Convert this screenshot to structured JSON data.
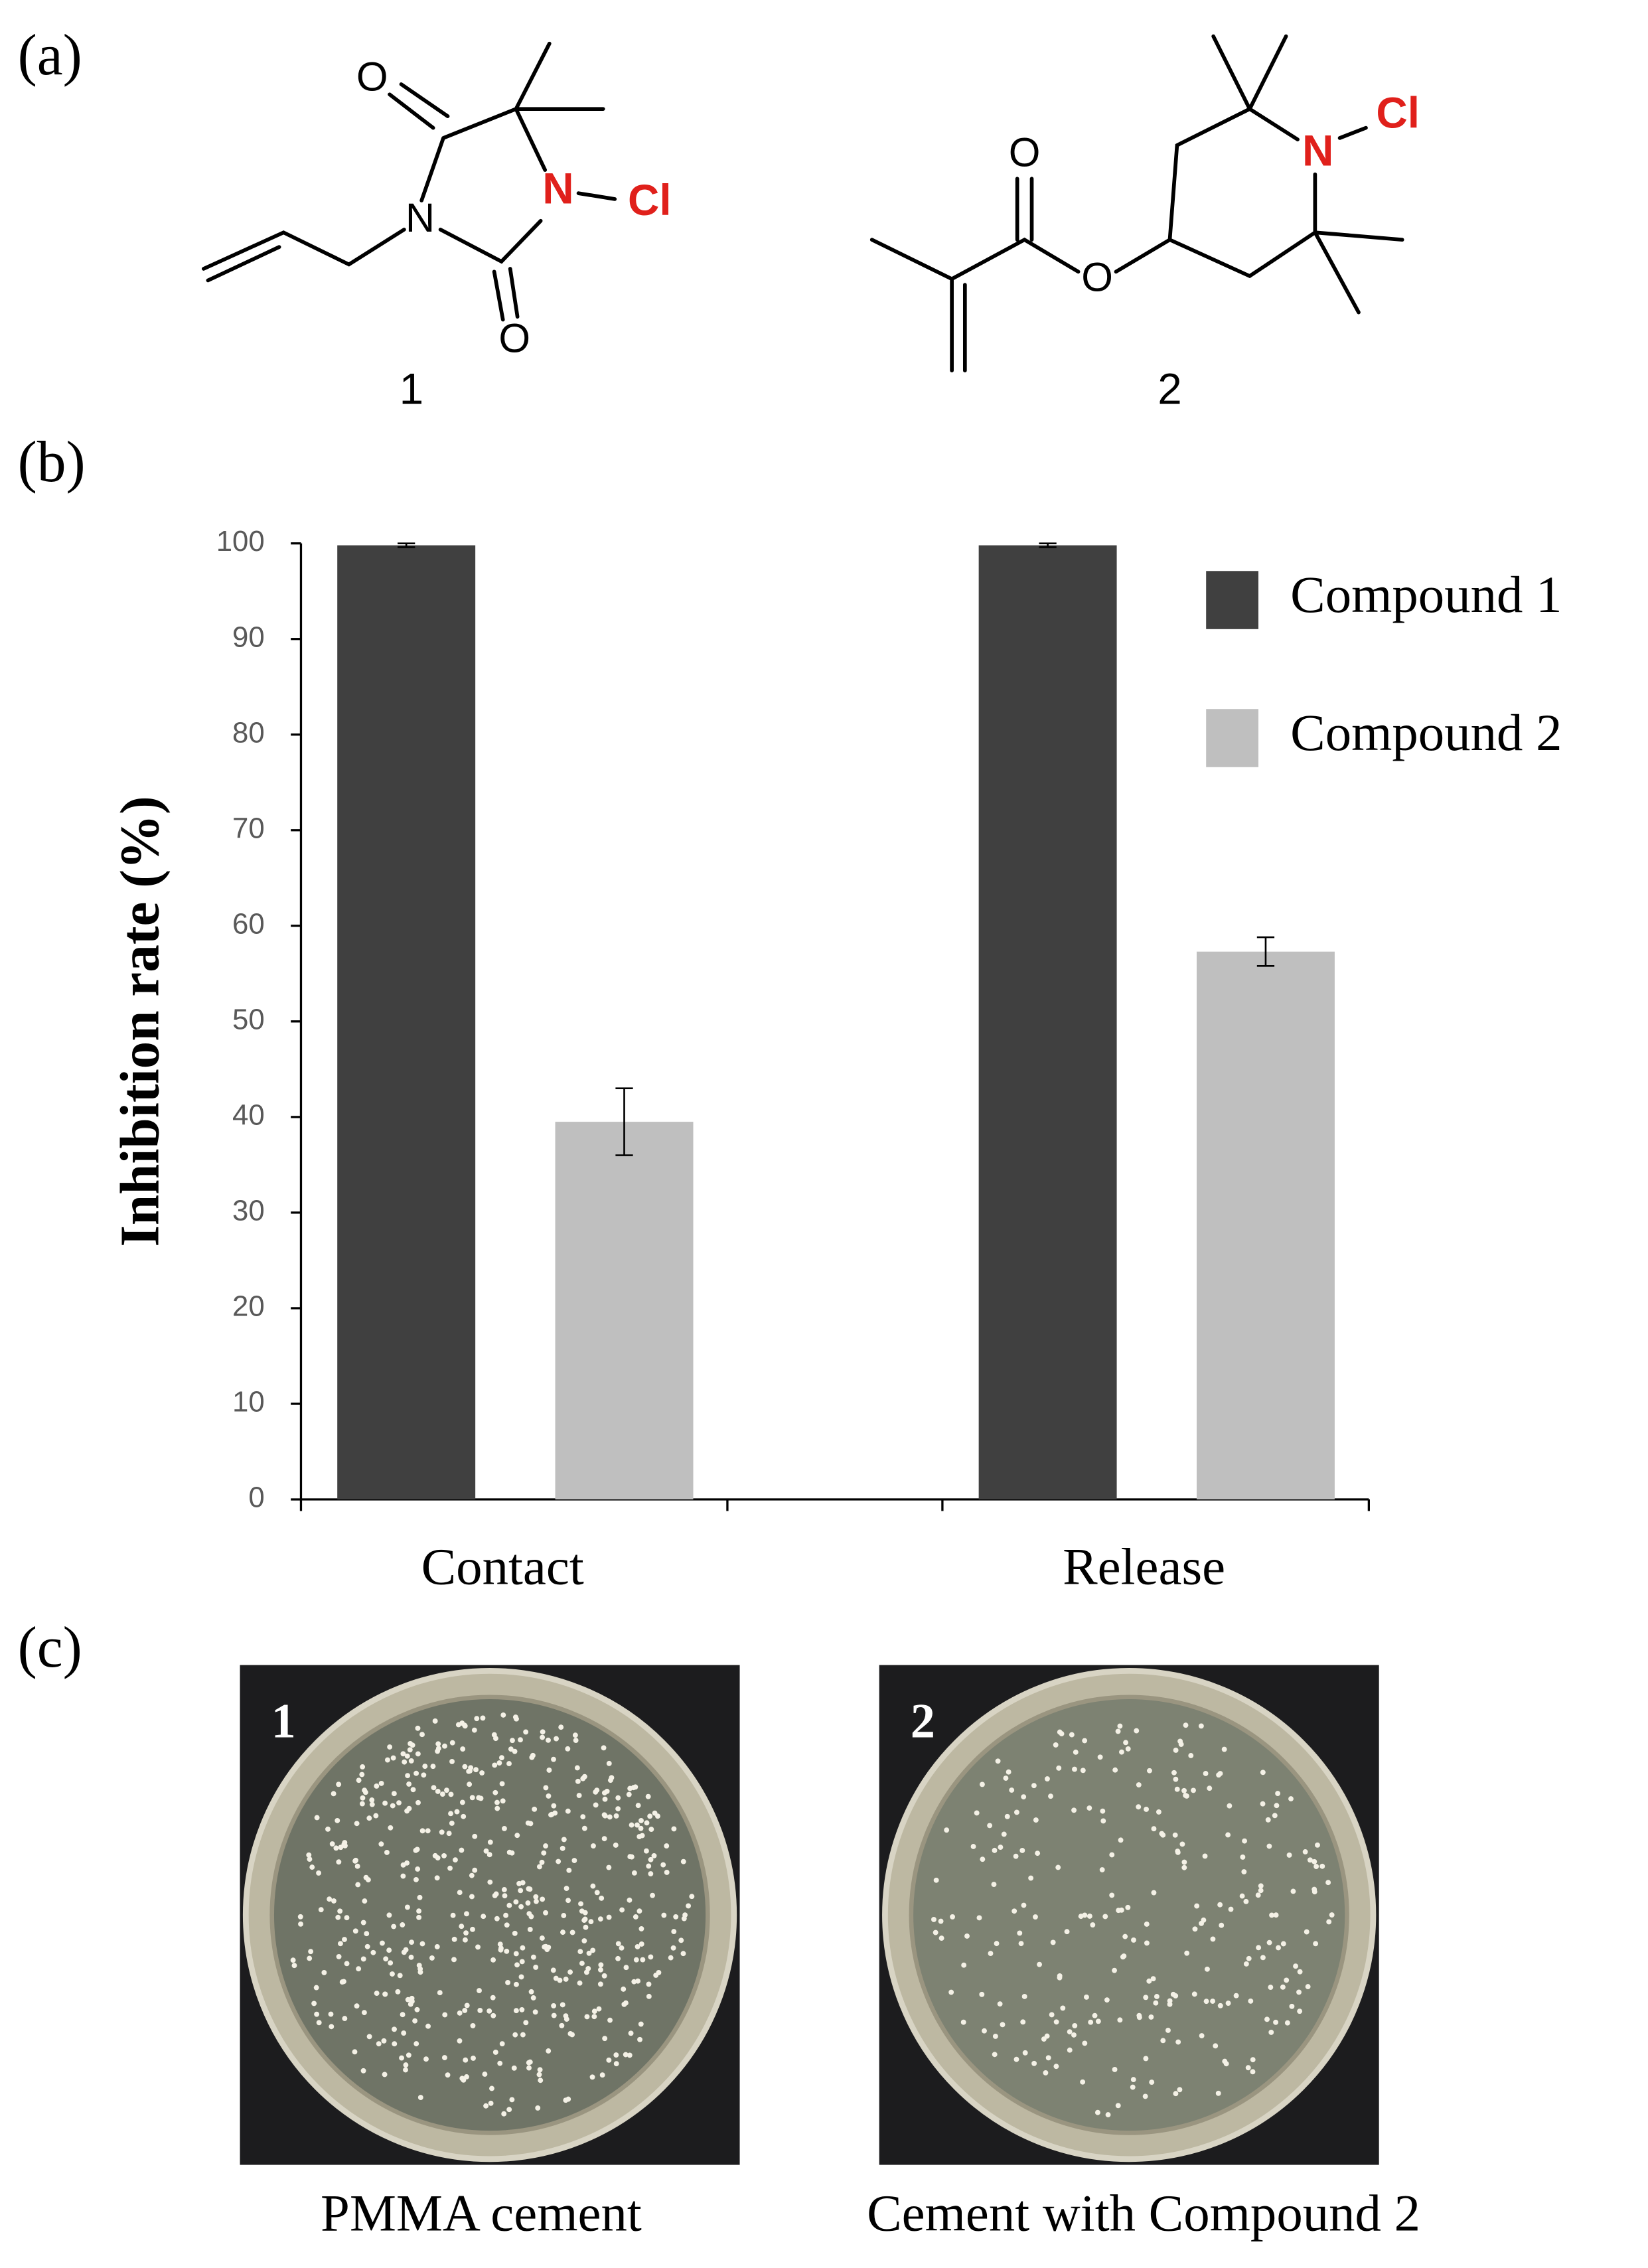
{
  "panel_labels": [
    "(a)",
    "(b)",
    "(c)"
  ],
  "structures": [
    {
      "label": "1",
      "atoms": [
        "O",
        "N",
        "N",
        "Cl",
        "O"
      ]
    },
    {
      "label": "2",
      "atoms": [
        "O",
        "O",
        "N",
        "Cl"
      ]
    }
  ],
  "chart_data": {
    "type": "bar",
    "y_label": "Inhibition rate (%)",
    "categories": [
      "Contact",
      "Release"
    ],
    "series": [
      {
        "name": "Compound 1",
        "color": "#404040",
        "values": [
          99.8,
          99.8
        ],
        "errors": [
          0.2,
          0.2
        ]
      },
      {
        "name": "Compound 2",
        "color": "#bfbfbf",
        "values": [
          39.5,
          57.3
        ],
        "errors": [
          3.5,
          1.5
        ]
      }
    ],
    "ylim": [
      0,
      100
    ],
    "yticks": [
      0,
      10,
      20,
      30,
      40,
      50,
      60,
      70,
      80,
      90,
      100
    ],
    "legend": "top-right"
  },
  "plates": [
    {
      "label": "1",
      "caption": "PMMA cement"
    },
    {
      "label": "2",
      "caption": "Cement with Compound 2"
    }
  ]
}
